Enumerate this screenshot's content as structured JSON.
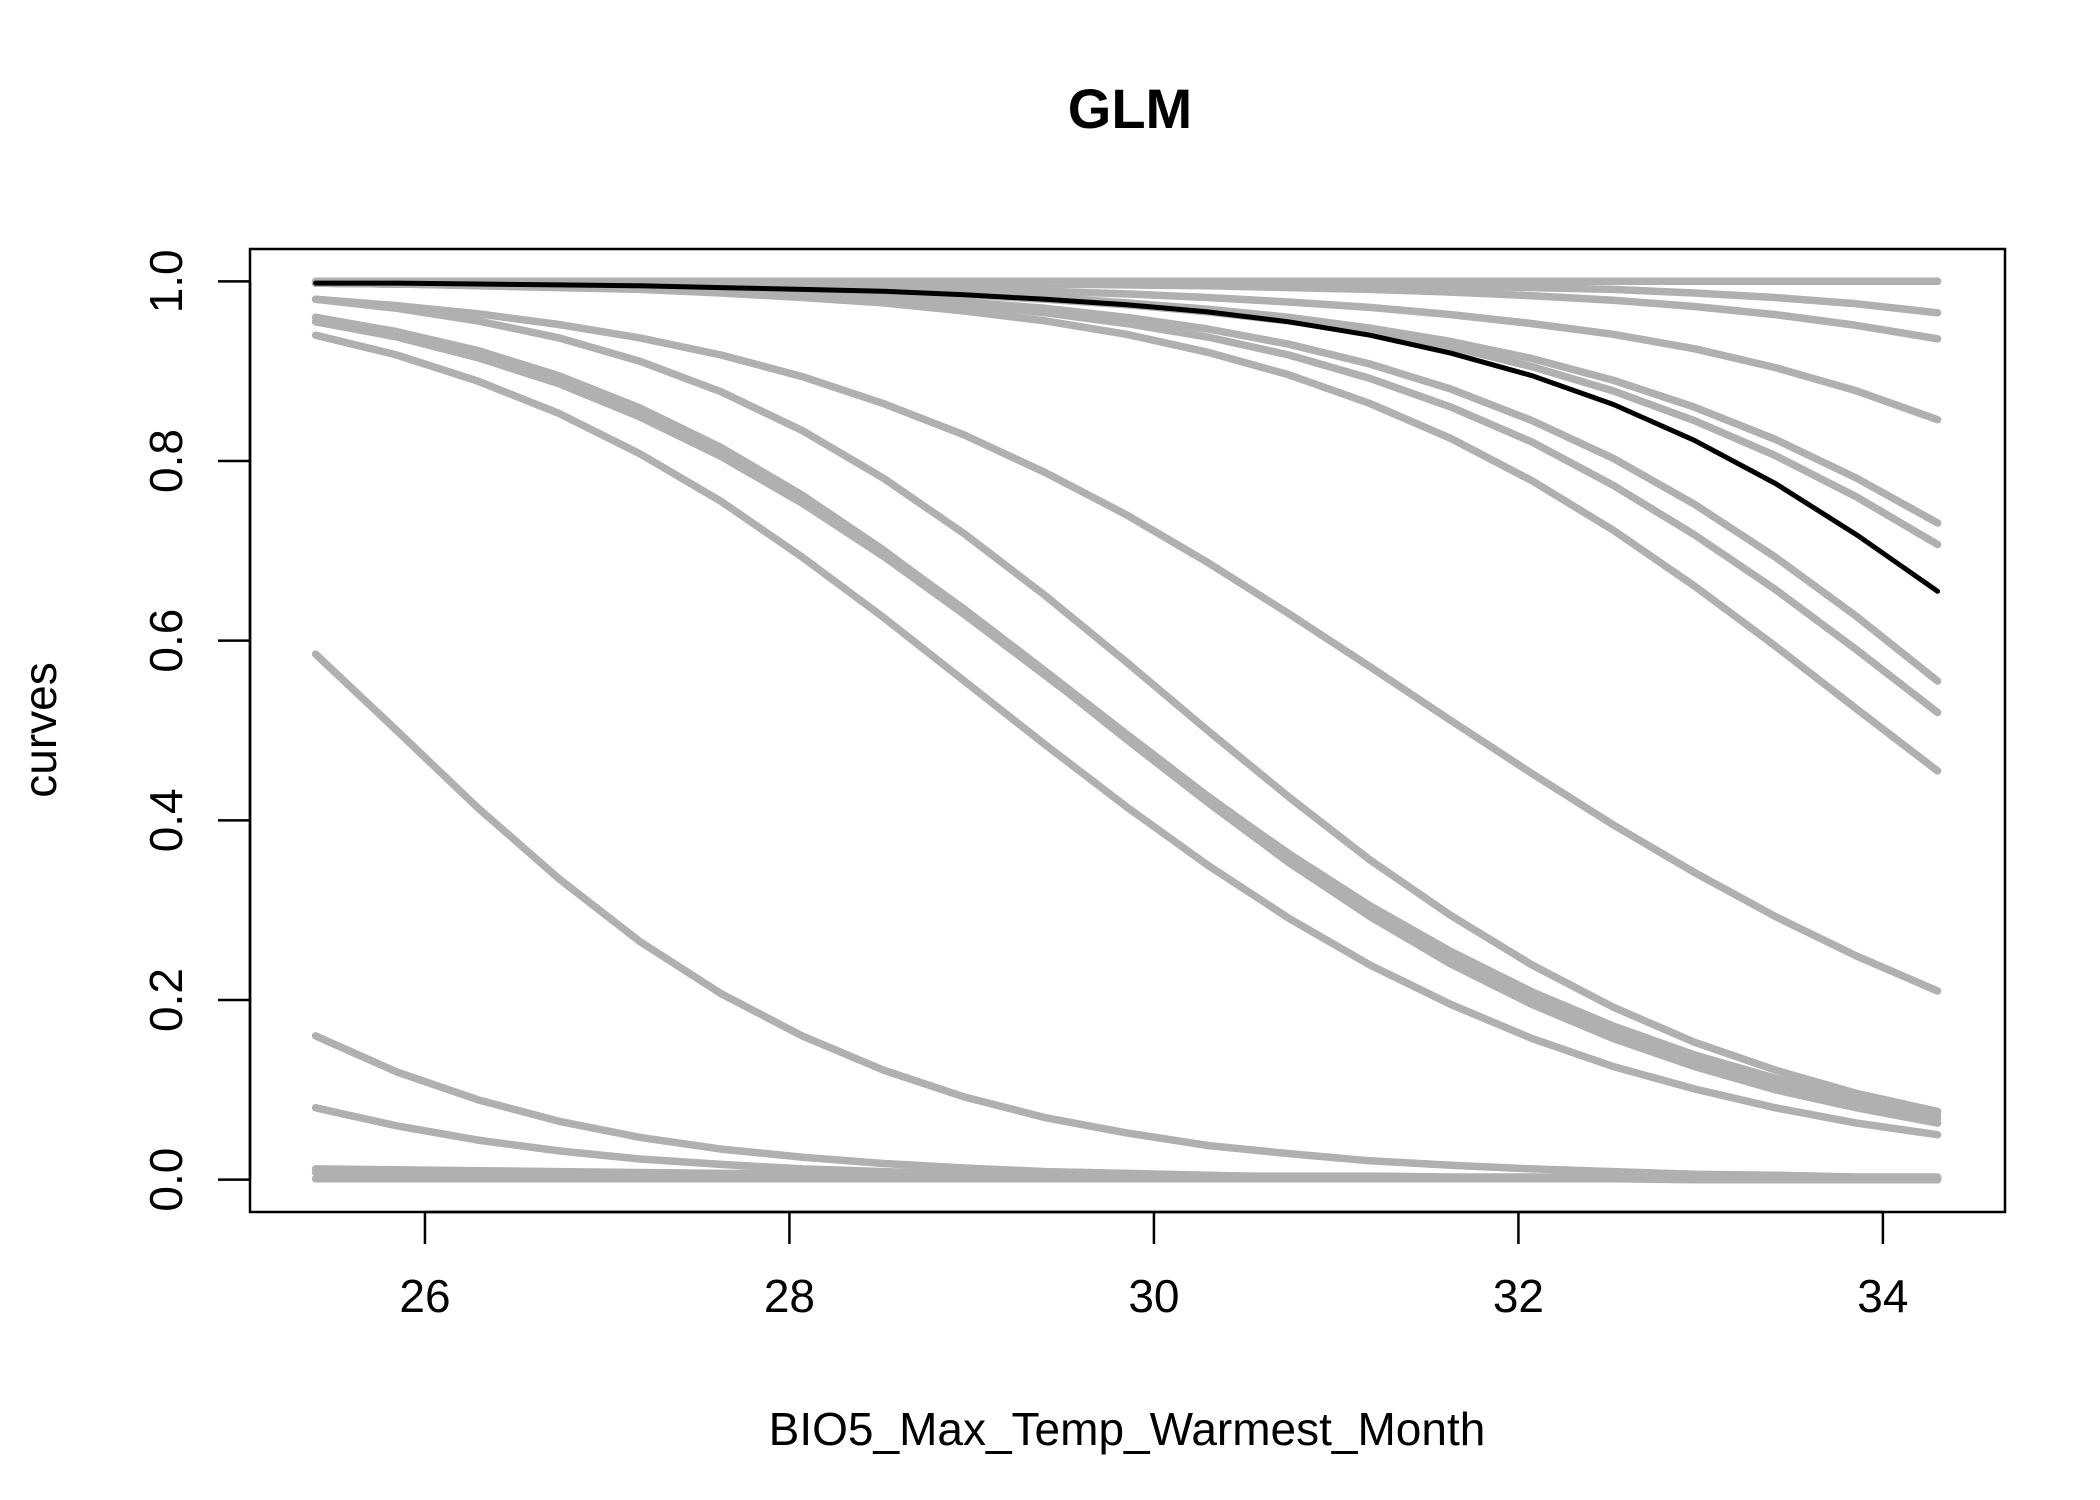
{
  "chart_data": {
    "type": "line",
    "title": "GLM",
    "xlabel": "BIO5_Max_Temp_Warmest_Month",
    "ylabel": "curves",
    "xlim": [
      25.04,
      34.67
    ],
    "ylim": [
      -0.036,
      1.036
    ],
    "x_ticks": [
      26,
      28,
      30,
      32,
      34
    ],
    "x_tick_labels": [
      "26",
      "28",
      "30",
      "32",
      "34"
    ],
    "y_ticks": [
      0.0,
      0.2,
      0.4,
      0.6,
      0.8,
      1.0
    ],
    "y_tick_labels": [
      "0.0",
      "0.2",
      "0.4",
      "0.6",
      "0.8",
      "1.0"
    ],
    "grid": false,
    "legend": "none",
    "colors": {
      "replicate": "#b0b0b0",
      "mean": "#000000",
      "axis": "#000000"
    },
    "x": [
      25.4,
      25.845,
      26.29,
      26.735,
      27.18,
      27.625,
      28.07,
      28.515,
      28.96,
      29.405,
      29.85,
      30.295,
      30.74,
      31.185,
      31.63,
      32.075,
      32.52,
      32.965,
      33.41,
      33.855,
      34.3
    ],
    "series": [
      {
        "values": [
          0.998,
          0.998,
          0.997,
          0.997,
          0.996,
          0.995,
          0.994,
          0.993,
          0.991,
          0.989,
          0.986,
          0.982,
          0.977,
          0.971,
          0.963,
          0.953,
          0.941,
          0.925,
          0.904,
          0.878,
          0.846
        ]
      },
      {
        "values": [
          0.998,
          0.997,
          0.996,
          0.995,
          0.994,
          0.993,
          0.991,
          0.988,
          0.985,
          0.98,
          0.974,
          0.966,
          0.956,
          0.943,
          0.927,
          0.905,
          0.878,
          0.845,
          0.806,
          0.76,
          0.707
        ]
      },
      {
        "values": [
          0.998,
          0.997,
          0.997,
          0.996,
          0.995,
          0.993,
          0.991,
          0.989,
          0.986,
          0.982,
          0.976,
          0.969,
          0.96,
          0.948,
          0.933,
          0.914,
          0.89,
          0.86,
          0.824,
          0.781,
          0.731
        ]
      },
      {
        "values": [
          1.0,
          1.0,
          1.0,
          1.0,
          1.0,
          1.0,
          1.0,
          1.0,
          1.0,
          1.0,
          1.0,
          1.0,
          1.0,
          1.0,
          1.0,
          1.0,
          1.0,
          1.0,
          1.0,
          1.0,
          1.0
        ]
      },
      {
        "values": [
          0.999,
          0.999,
          0.999,
          0.999,
          0.999,
          0.999,
          0.999,
          0.999,
          0.999,
          0.999,
          0.998,
          0.998,
          0.997,
          0.996,
          0.995,
          0.993,
          0.991,
          0.987,
          0.982,
          0.975,
          0.965
        ]
      },
      {
        "values": [
          0.999,
          0.999,
          0.999,
          0.999,
          0.999,
          0.999,
          0.998,
          0.998,
          0.998,
          0.997,
          0.996,
          0.995,
          0.993,
          0.991,
          0.988,
          0.984,
          0.979,
          0.972,
          0.963,
          0.951,
          0.936
        ]
      },
      {
        "values": [
          0.998,
          0.997,
          0.996,
          0.995,
          0.993,
          0.991,
          0.988,
          0.983,
          0.977,
          0.97,
          0.96,
          0.947,
          0.93,
          0.908,
          0.88,
          0.845,
          0.803,
          0.752,
          0.693,
          0.627,
          0.555
        ]
      },
      {
        "values": [
          0.998,
          0.997,
          0.996,
          0.994,
          0.992,
          0.989,
          0.985,
          0.98,
          0.974,
          0.965,
          0.953,
          0.938,
          0.918,
          0.892,
          0.86,
          0.821,
          0.773,
          0.718,
          0.657,
          0.59,
          0.52
        ]
      },
      {
        "values": [
          0.998,
          0.997,
          0.995,
          0.993,
          0.991,
          0.987,
          0.982,
          0.976,
          0.967,
          0.956,
          0.941,
          0.921,
          0.896,
          0.864,
          0.825,
          0.778,
          0.723,
          0.661,
          0.594,
          0.524,
          0.455
        ]
      },
      {
        "values": [
          0.98,
          0.97,
          0.956,
          0.937,
          0.911,
          0.877,
          0.834,
          0.781,
          0.719,
          0.65,
          0.576,
          0.5,
          0.426,
          0.356,
          0.294,
          0.239,
          0.192,
          0.153,
          0.122,
          0.096,
          0.076
        ]
      },
      {
        "values": [
          0.96,
          0.944,
          0.923,
          0.895,
          0.859,
          0.815,
          0.762,
          0.701,
          0.634,
          0.562,
          0.49,
          0.42,
          0.353,
          0.293,
          0.24,
          0.195,
          0.157,
          0.126,
          0.1,
          0.08,
          0.063
        ]
      },
      {
        "values": [
          0.96,
          0.943,
          0.921,
          0.892,
          0.856,
          0.812,
          0.76,
          0.7,
          0.635,
          0.566,
          0.496,
          0.427,
          0.362,
          0.302,
          0.249,
          0.203,
          0.165,
          0.133,
          0.107,
          0.085,
          0.068
        ]
      },
      {
        "values": [
          0.955,
          0.938,
          0.915,
          0.886,
          0.849,
          0.805,
          0.753,
          0.694,
          0.629,
          0.561,
          0.493,
          0.426,
          0.363,
          0.305,
          0.254,
          0.209,
          0.171,
          0.139,
          0.113,
          0.091,
          0.073
        ]
      },
      {
        "values": [
          0.94,
          0.918,
          0.889,
          0.853,
          0.808,
          0.755,
          0.693,
          0.626,
          0.555,
          0.484,
          0.415,
          0.35,
          0.291,
          0.239,
          0.195,
          0.157,
          0.126,
          0.101,
          0.08,
          0.063,
          0.05
        ]
      },
      {
        "values": [
          0.98,
          0.973,
          0.964,
          0.952,
          0.937,
          0.918,
          0.894,
          0.864,
          0.829,
          0.787,
          0.74,
          0.687,
          0.63,
          0.571,
          0.511,
          0.452,
          0.395,
          0.342,
          0.293,
          0.249,
          0.21
        ]
      },
      {
        "values": [
          0.585,
          0.5,
          0.414,
          0.335,
          0.265,
          0.207,
          0.16,
          0.122,
          0.092,
          0.069,
          0.052,
          0.038,
          0.029,
          0.021,
          0.016,
          0.012,
          0.009,
          0.006,
          0.005,
          0.003,
          0.003
        ]
      },
      {
        "values": [
          0.16,
          0.12,
          0.089,
          0.065,
          0.047,
          0.034,
          0.025,
          0.018,
          0.013,
          0.009,
          0.007,
          0.005,
          0.003,
          0.002,
          0.002,
          0.001,
          0.001,
          0.001,
          0.001,
          0.0,
          0.0
        ]
      },
      {
        "values": [
          0.08,
          0.06,
          0.044,
          0.032,
          0.023,
          0.017,
          0.012,
          0.009,
          0.006,
          0.005,
          0.003,
          0.002,
          0.002,
          0.001,
          0.001,
          0.001,
          0.001,
          0.0,
          0.0,
          0.0,
          0.0
        ]
      },
      {
        "values": [
          0.012,
          0.011,
          0.01,
          0.009,
          0.008,
          0.007,
          0.007,
          0.006,
          0.006,
          0.005,
          0.005,
          0.004,
          0.004,
          0.004,
          0.003,
          0.003,
          0.003,
          0.003,
          0.002,
          0.002,
          0.002
        ]
      },
      {
        "values": [
          0.008,
          0.007,
          0.006,
          0.006,
          0.005,
          0.005,
          0.004,
          0.004,
          0.004,
          0.003,
          0.003,
          0.003,
          0.003,
          0.002,
          0.002,
          0.002,
          0.002,
          0.002,
          0.002,
          0.001,
          0.001
        ]
      },
      {
        "values": [
          0.001,
          0.001,
          0.001,
          0.001,
          0.001,
          0.001,
          0.001,
          0.001,
          0.001,
          0.001,
          0.001,
          0.001,
          0.001,
          0.001,
          0.001,
          0.001,
          0.001,
          0.001,
          0.001,
          0.001,
          0.001
        ]
      },
      {
        "values": [
          0.998,
          0.998,
          0.997,
          0.996,
          0.995,
          0.993,
          0.991,
          0.989,
          0.985,
          0.98,
          0.974,
          0.966,
          0.955,
          0.94,
          0.92,
          0.895,
          0.863,
          0.823,
          0.775,
          0.718,
          0.655
        ],
        "highlight": true
      }
    ]
  }
}
